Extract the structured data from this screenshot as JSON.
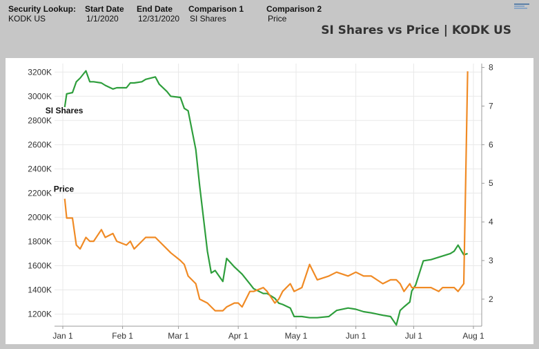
{
  "header": {
    "fields": [
      {
        "label": "Security Lookup:",
        "value": "KODK US"
      },
      {
        "label": "Start Date",
        "value": "1/1/2020"
      },
      {
        "label": "End Date",
        "value": "12/31/2020"
      },
      {
        "label": "Comparison 1",
        "value": "SI Shares"
      },
      {
        "label": "Comparison 2",
        "value": "Price"
      }
    ],
    "brand_icon": "bars-logo-icon"
  },
  "chart_data": {
    "type": "line",
    "title": "SI Shares vs Price | KODK US",
    "x_ticks": [
      "Jan 1",
      "Feb 1",
      "Mar 1",
      "Apr 1",
      "May 1",
      "Jun 1",
      "Jul 1",
      "Aug 1"
    ],
    "xlim": [
      "2020-01-01",
      "2020-08-01"
    ],
    "y_left": {
      "ticks": [
        "1200K",
        "1400K",
        "1600K",
        "1800K",
        "2000K",
        "2200K",
        "2400K",
        "2600K",
        "2800K",
        "3000K",
        "3200K"
      ],
      "ylim": [
        1100,
        3270
      ],
      "unit": "K"
    },
    "y_right": {
      "ticks": [
        "2",
        "3",
        "4",
        "5",
        "6",
        "7",
        "8"
      ],
      "ylim": [
        1.3,
        8.1
      ]
    },
    "grid": true,
    "series": [
      {
        "name": "SI Shares",
        "axis": "left",
        "color": "#2e9e3c",
        "x": [
          "2020-01-02",
          "2020-01-03",
          "2020-01-06",
          "2020-01-08",
          "2020-01-10",
          "2020-01-13",
          "2020-01-15",
          "2020-01-17",
          "2020-01-21",
          "2020-01-23",
          "2020-01-27",
          "2020-01-29",
          "2020-02-03",
          "2020-02-05",
          "2020-02-07",
          "2020-02-11",
          "2020-02-13",
          "2020-02-18",
          "2020-02-20",
          "2020-02-24",
          "2020-02-26",
          "2020-03-02",
          "2020-03-04",
          "2020-03-06",
          "2020-03-10",
          "2020-03-12",
          "2020-03-16",
          "2020-03-18",
          "2020-03-20",
          "2020-03-24",
          "2020-03-26",
          "2020-03-30",
          "2020-04-01",
          "2020-04-03",
          "2020-04-07",
          "2020-04-09",
          "2020-04-14",
          "2020-04-16",
          "2020-04-20",
          "2020-04-22",
          "2020-04-24",
          "2020-04-28",
          "2020-04-30",
          "2020-05-04",
          "2020-05-08",
          "2020-05-12",
          "2020-05-18",
          "2020-05-22",
          "2020-05-28",
          "2020-06-01",
          "2020-06-05",
          "2020-06-09",
          "2020-06-15",
          "2020-06-19",
          "2020-06-22",
          "2020-06-24",
          "2020-06-26",
          "2020-06-29",
          "2020-06-30",
          "2020-07-02",
          "2020-07-06",
          "2020-07-10",
          "2020-07-14",
          "2020-07-16",
          "2020-07-20",
          "2020-07-22",
          "2020-07-24",
          "2020-07-27",
          "2020-07-29"
        ],
        "y": [
          2910,
          3020,
          3030,
          3120,
          3150,
          3210,
          3120,
          3120,
          3110,
          3090,
          3060,
          3070,
          3070,
          3110,
          3110,
          3120,
          3140,
          3160,
          3100,
          3040,
          3000,
          2990,
          2900,
          2880,
          2560,
          2260,
          1720,
          1540,
          1560,
          1470,
          1660,
          1590,
          1560,
          1530,
          1450,
          1410,
          1370,
          1370,
          1330,
          1290,
          1280,
          1250,
          1180,
          1180,
          1170,
          1170,
          1180,
          1230,
          1250,
          1240,
          1220,
          1210,
          1190,
          1180,
          1110,
          1230,
          1260,
          1300,
          1390,
          1440,
          1640,
          1650,
          1670,
          1680,
          1700,
          1720,
          1770,
          1690,
          1700
        ]
      },
      {
        "name": "Price",
        "axis": "right",
        "color": "#f08a24",
        "x": [
          "2020-01-02",
          "2020-01-03",
          "2020-01-06",
          "2020-01-08",
          "2020-01-10",
          "2020-01-13",
          "2020-01-15",
          "2020-01-17",
          "2020-01-21",
          "2020-01-23",
          "2020-01-27",
          "2020-01-29",
          "2020-02-03",
          "2020-02-05",
          "2020-02-07",
          "2020-02-11",
          "2020-02-13",
          "2020-02-18",
          "2020-02-20",
          "2020-02-24",
          "2020-02-26",
          "2020-03-02",
          "2020-03-04",
          "2020-03-06",
          "2020-03-10",
          "2020-03-12",
          "2020-03-16",
          "2020-03-18",
          "2020-03-20",
          "2020-03-24",
          "2020-03-26",
          "2020-03-30",
          "2020-04-01",
          "2020-04-03",
          "2020-04-07",
          "2020-04-09",
          "2020-04-14",
          "2020-04-16",
          "2020-04-20",
          "2020-04-22",
          "2020-04-24",
          "2020-04-28",
          "2020-04-30",
          "2020-05-04",
          "2020-05-08",
          "2020-05-12",
          "2020-05-18",
          "2020-05-22",
          "2020-05-28",
          "2020-06-01",
          "2020-06-05",
          "2020-06-09",
          "2020-06-15",
          "2020-06-19",
          "2020-06-22",
          "2020-06-24",
          "2020-06-26",
          "2020-06-29",
          "2020-06-30",
          "2020-07-02",
          "2020-07-06",
          "2020-07-10",
          "2020-07-14",
          "2020-07-16",
          "2020-07-20",
          "2020-07-22",
          "2020-07-24",
          "2020-07-27",
          "2020-07-28",
          "2020-07-29"
        ],
        "y": [
          4.6,
          4.1,
          4.1,
          3.4,
          3.3,
          3.6,
          3.5,
          3.5,
          3.8,
          3.6,
          3.7,
          3.5,
          3.4,
          3.5,
          3.3,
          3.5,
          3.6,
          3.6,
          3.5,
          3.3,
          3.2,
          3.0,
          2.9,
          2.6,
          2.4,
          2.0,
          1.9,
          1.8,
          1.7,
          1.7,
          1.8,
          1.9,
          1.9,
          1.8,
          2.2,
          2.2,
          2.3,
          2.2,
          1.9,
          2.0,
          2.2,
          2.4,
          2.2,
          2.3,
          2.9,
          2.5,
          2.6,
          2.7,
          2.6,
          2.7,
          2.6,
          2.6,
          2.4,
          2.5,
          2.5,
          2.4,
          2.2,
          2.4,
          2.3,
          2.3,
          2.3,
          2.3,
          2.2,
          2.3,
          2.3,
          2.3,
          2.2,
          2.4,
          5.1,
          7.9
        ]
      }
    ]
  }
}
